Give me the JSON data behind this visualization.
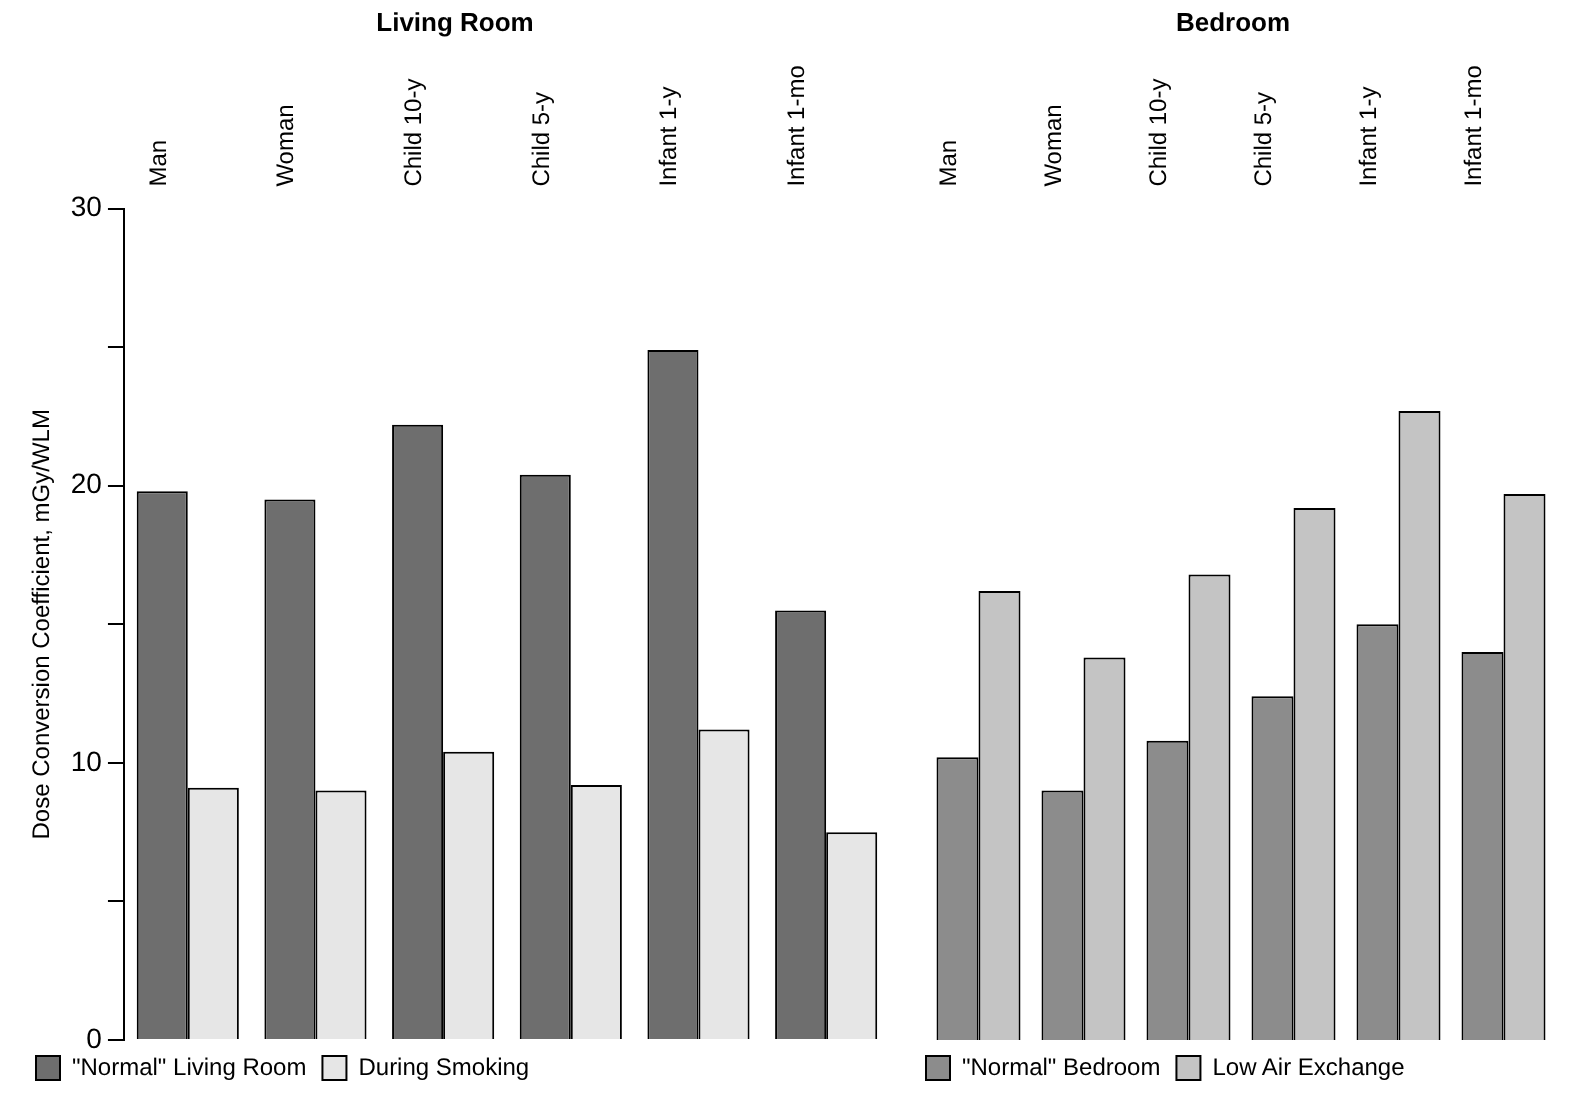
{
  "chart_data": [
    {
      "type": "bar",
      "title": "Living Room",
      "ylabel": "Dose Conversion Coefficient, mGy/WLM",
      "categories": [
        "Man",
        "Woman",
        "Child 10-y",
        "Child 5-y",
        "Infant 1-y",
        "Infant 1-mo"
      ],
      "series": [
        {
          "name": "\"Normal\" Living Room",
          "color": "#6e6e6e",
          "values": [
            19.8,
            19.5,
            22.2,
            20.4,
            24.9,
            15.5
          ]
        },
        {
          "name": "During Smoking",
          "color": "#e6e6e6",
          "values": [
            9.1,
            9.0,
            10.4,
            9.2,
            11.2,
            7.5
          ]
        }
      ],
      "ylim": [
        0,
        30
      ],
      "yticks": [
        0,
        {
          "value": 5,
          "label": null
        },
        10,
        {
          "value": 15,
          "label": null
        },
        20,
        {
          "value": 25,
          "label": null
        },
        30
      ],
      "grid": false,
      "legend": "bottom"
    },
    {
      "type": "bar",
      "title": "Bedroom",
      "categories": [
        "Man",
        "Woman",
        "Child 10-y",
        "Child 5-y",
        "Infant 1-y",
        "Infant 1-mo"
      ],
      "series": [
        {
          "name": "\"Normal\" Bedroom",
          "color": "#8c8c8c",
          "values": [
            10.2,
            9.0,
            10.8,
            12.4,
            15.0,
            14.0
          ]
        },
        {
          "name": "Low Air Exchange",
          "color": "#c4c4c4",
          "values": [
            16.2,
            13.8,
            16.8,
            19.2,
            22.7,
            19.7
          ]
        }
      ],
      "ylim": [
        0,
        30
      ],
      "grid": false,
      "legend": "bottom",
      "tick_labels": "x"
    }
  ]
}
